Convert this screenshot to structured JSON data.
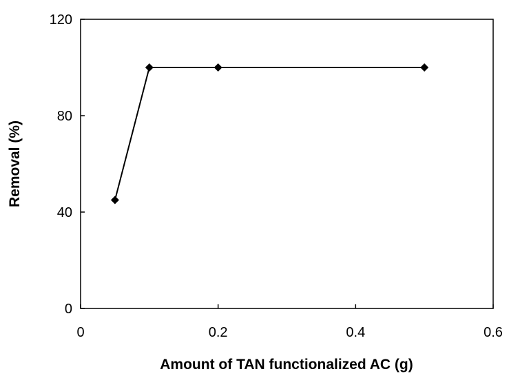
{
  "chart_data": {
    "type": "line",
    "title": "",
    "xlabel": "Amount of TAN functionalized AC (g)",
    "ylabel": "Removal (%)",
    "xlim": [
      0,
      0.6
    ],
    "ylim": [
      0,
      120
    ],
    "x_ticks": [
      0,
      0.2,
      0.4,
      0.6
    ],
    "x_tick_labels": [
      "0",
      "0.2",
      "0.4",
      "0.6"
    ],
    "y_ticks": [
      0,
      40,
      80,
      120
    ],
    "y_tick_labels": [
      "0",
      "40",
      "80",
      "120"
    ],
    "grid": false,
    "legend": "none",
    "marker": "diamond",
    "colors": {
      "line": "#000000",
      "marker": "#000000",
      "axes": "#000000"
    },
    "series": [
      {
        "x": [
          0.05,
          0.1,
          0.2,
          0.5
        ],
        "y": [
          45,
          100,
          100,
          100
        ]
      }
    ]
  }
}
